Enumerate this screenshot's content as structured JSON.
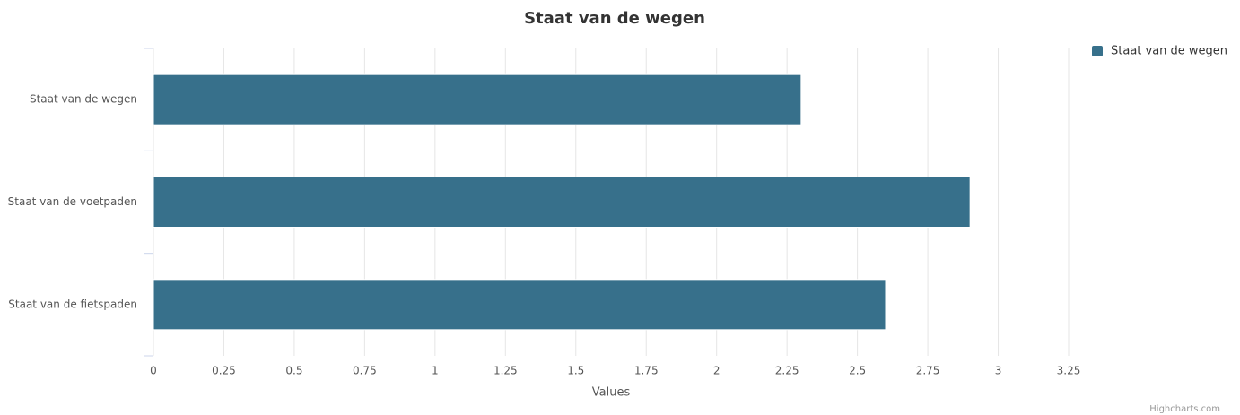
{
  "chart_data": {
    "type": "bar",
    "title": "Staat van de wegen",
    "categories": [
      "Staat van de wegen",
      "Staat van de voetpaden",
      "Staat van de fietspaden"
    ],
    "series": [
      {
        "name": "Staat van de wegen",
        "color": "#37708b",
        "values": [
          2.3,
          2.9,
          2.6
        ]
      }
    ],
    "xlim": [
      0,
      3.25
    ],
    "xticks": [
      0,
      0.25,
      0.5,
      0.75,
      1,
      1.25,
      1.5,
      1.75,
      2,
      2.25,
      2.5,
      2.75,
      3,
      3.25
    ],
    "xlabel": "Values",
    "grid": true,
    "legend": "top-right",
    "credits": "Highcharts.com"
  }
}
